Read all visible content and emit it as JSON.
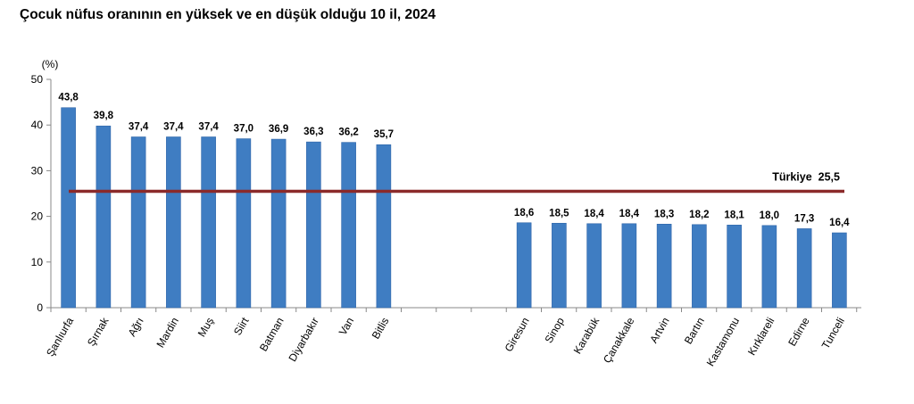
{
  "chart_data": {
    "type": "bar",
    "title": "Çocuk nüfus oranının en yüksek ve en düşük olduğu 10 il, 2024",
    "ylabel": "(%)",
    "xlabel": "",
    "ylim": [
      0,
      50
    ],
    "yticks": [
      "0",
      "10",
      "20",
      "30",
      "40",
      "50"
    ],
    "groups": [
      {
        "categories": [
          "Şanlıurfa",
          "Şırnak",
          "Ağrı",
          "Mardin",
          "Muş",
          "Siirt",
          "Batman",
          "Diyarbakır",
          "Van",
          "Bitlis"
        ],
        "values": [
          43.8,
          39.8,
          37.4,
          37.4,
          37.4,
          37.0,
          36.9,
          36.3,
          36.2,
          35.7
        ],
        "labels": [
          "43,8",
          "39,8",
          "37,4",
          "37,4",
          "37,4",
          "37,0",
          "36,9",
          "36,3",
          "36,2",
          "35,7"
        ]
      },
      {
        "categories": [
          "Giresun",
          "Sinop",
          "Karabük",
          "Çanakkale",
          "Artvin",
          "Bartın",
          "Kastamonu",
          "Kırklareli",
          "Edirne",
          "Tunceli"
        ],
        "values": [
          18.6,
          18.5,
          18.4,
          18.4,
          18.3,
          18.2,
          18.1,
          18.0,
          17.3,
          16.4
        ],
        "labels": [
          "18,6",
          "18,5",
          "18,4",
          "18,4",
          "18,3",
          "18,2",
          "18,1",
          "18,0",
          "17,3",
          "16,4"
        ]
      }
    ],
    "reference_line": {
      "label": "Türkiye",
      "value": 25.5,
      "value_label": "25,5"
    },
    "colors": {
      "bar": "#3F7DC2",
      "bar_edge": "#2D64A8",
      "reference": "#8B2A2A",
      "axis": "#888888"
    },
    "grid": false,
    "legend": "none"
  }
}
